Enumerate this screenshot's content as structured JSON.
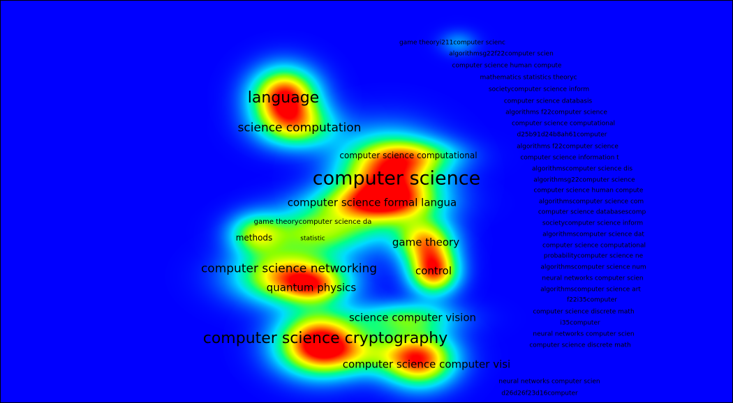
{
  "colors": {
    "background": "#0000ff",
    "ramp": [
      "#0000ff",
      "#00a0ff",
      "#00ffff",
      "#00ff60",
      "#c0ff00",
      "#ffff00",
      "#ff8000",
      "#ff0000"
    ]
  },
  "terms": {
    "language": "language",
    "science_computation": "science computation",
    "computer_science": "computer science",
    "cs_computational_center": "computer science computational",
    "cs_formal_langua": "computer science formal langua",
    "game_theory_cs_da": "game theorycomputer science da",
    "methods": "methods",
    "statistic": "statistic",
    "game_theory": "game theory",
    "control": "control",
    "cs_networking": "computer science networking",
    "quantum_physics": "quantum physics",
    "science_computer_vision": "science computer vision",
    "cs_cryptography": "computer science cryptography",
    "cs_computer_visi": "computer science computer visi"
  },
  "small_terms": [
    "game theoryi211computer scienc",
    "algorithmsg22f22computer scien",
    "computer science human compute",
    "mathematics statistics theoryc",
    "societycomputer science inform",
    "computer science databasis",
    "algorithms f22computer science",
    "computer science computational",
    "d25b91d24b8ah61computer",
    "algorithms f22computer science",
    "computer science information t",
    "algorithmscomputer science dis",
    "algorithmsg22computer science",
    "computer science human compute",
    "algorithmscomputer science com",
    "computer science databasescomp",
    "societycomputer science inform",
    "algorithmscomputer science dat",
    "computer science computational",
    "probabilitycomputer science ne",
    "algorithmscomputer science num",
    "neural networks computer scien",
    "algorithmscomputer science art",
    "f22i35computer",
    "computer science discrete math",
    "i35computer",
    "neural networks computer scien",
    "computer science discrete math",
    "neural networks computer scien",
    "d26d26f23d16computer"
  ]
}
